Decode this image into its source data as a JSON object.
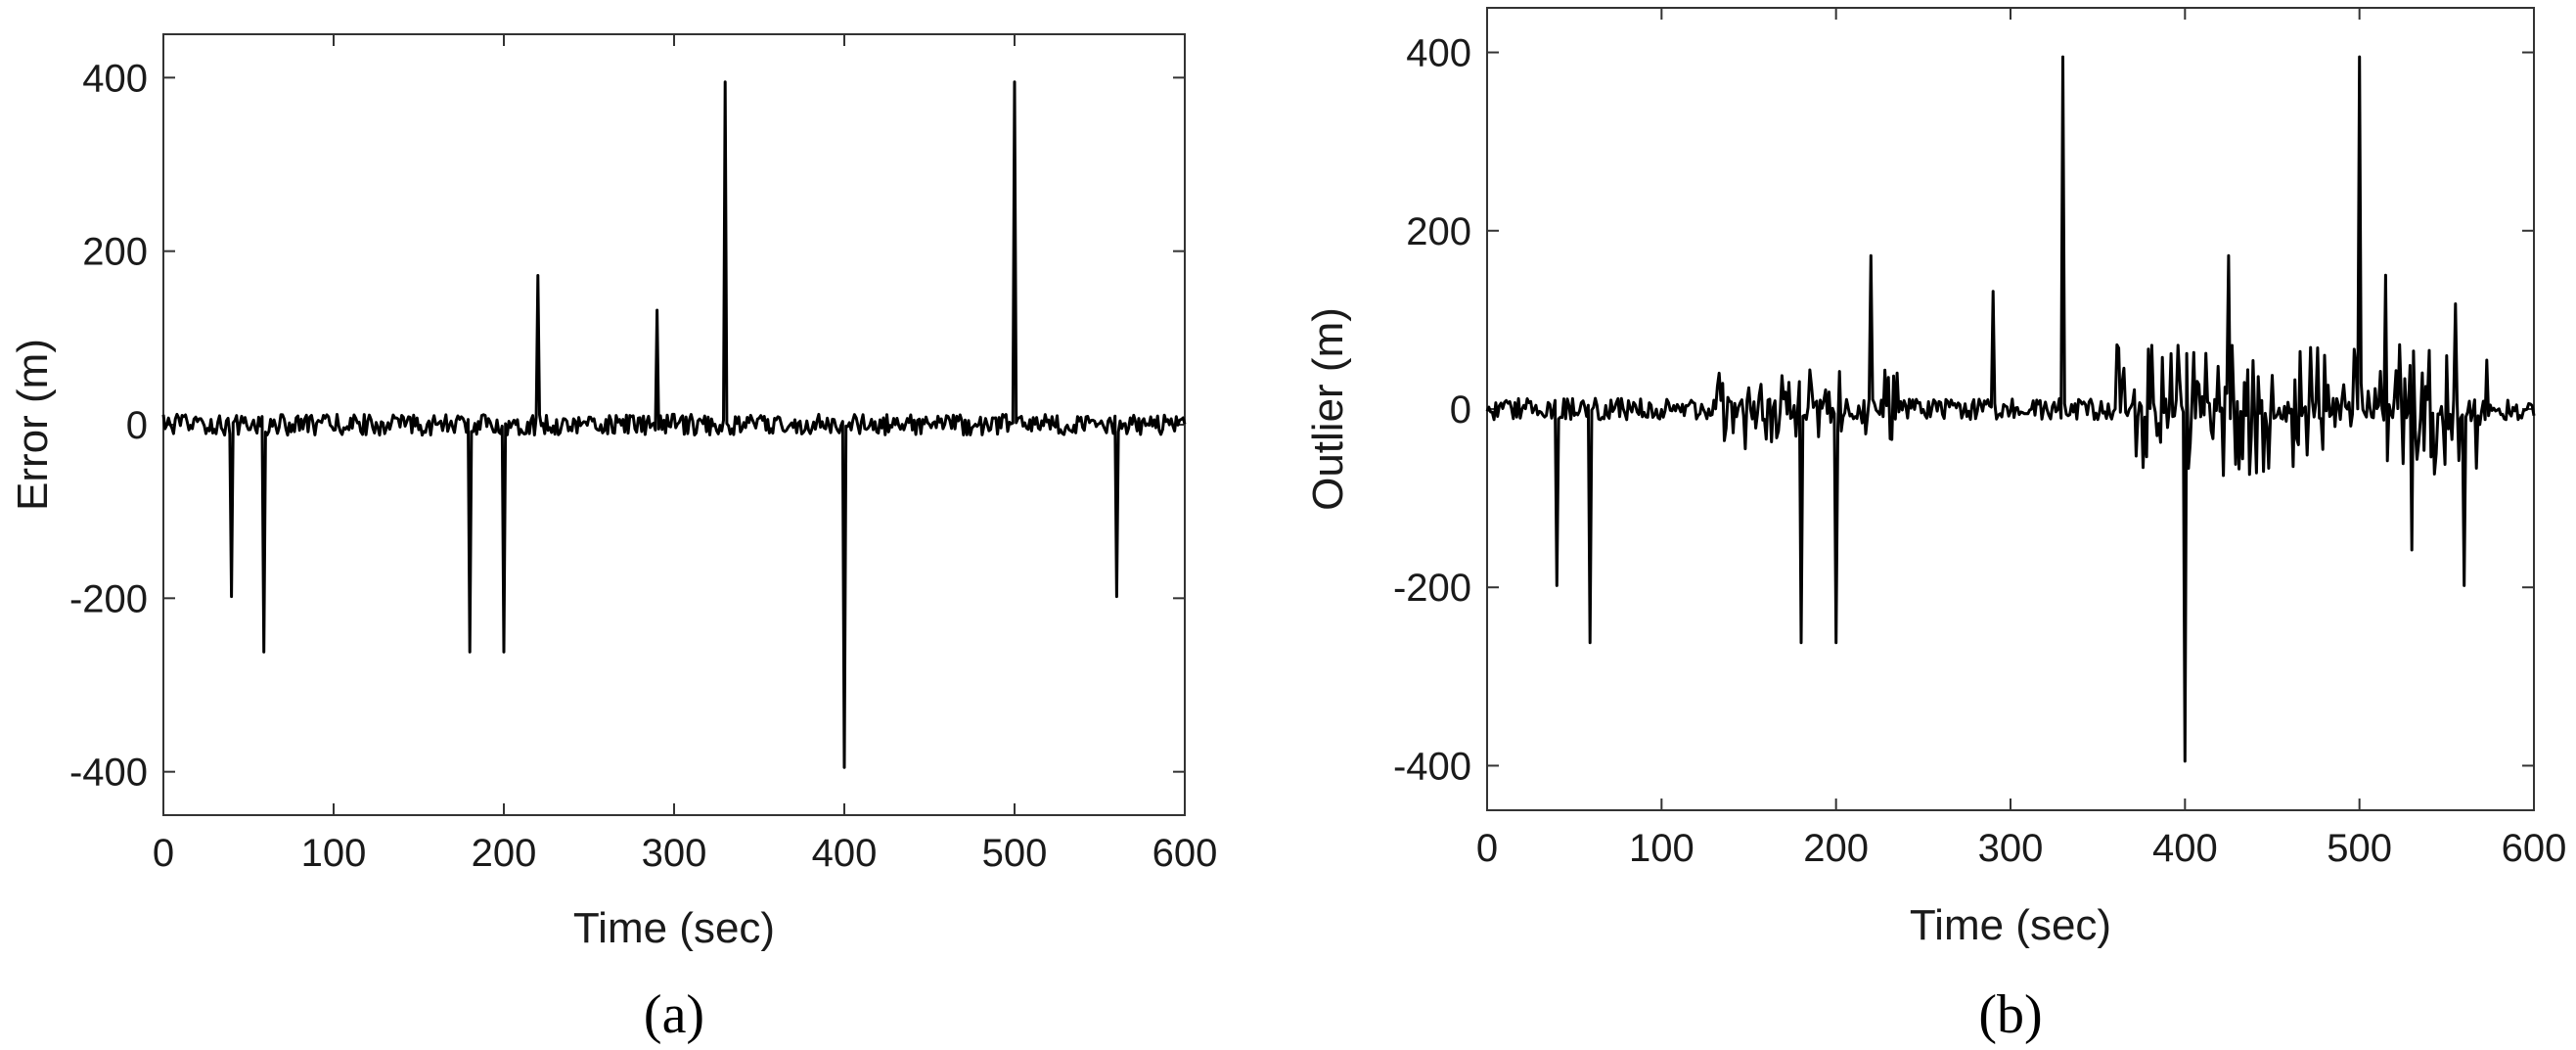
{
  "chart_data": [
    {
      "type": "line",
      "panel": "a",
      "caption": "(a)",
      "xlabel": "Time (sec)",
      "ylabel": "Error (m)",
      "xlim": [
        0,
        600
      ],
      "ylim": [
        -450,
        450
      ],
      "xticks": [
        0,
        100,
        200,
        300,
        400,
        500,
        600
      ],
      "yticks": [
        -400,
        -200,
        0,
        200,
        400
      ],
      "grid": false,
      "line_color": "#000000",
      "noise_amplitude": 12,
      "spikes": [
        {
          "x": 40,
          "y": -198
        },
        {
          "x": 59,
          "y": -262
        },
        {
          "x": 180,
          "y": -262
        },
        {
          "x": 200,
          "y": -262
        },
        {
          "x": 220,
          "y": 172
        },
        {
          "x": 290,
          "y": 132
        },
        {
          "x": 330,
          "y": 395
        },
        {
          "x": 400,
          "y": -395
        },
        {
          "x": 500,
          "y": 395
        },
        {
          "x": 560,
          "y": -198
        }
      ]
    },
    {
      "type": "line",
      "panel": "b",
      "caption": "(b)",
      "xlabel": "Time (sec)",
      "ylabel": "Outlier (m)",
      "xlim": [
        0,
        600
      ],
      "ylim": [
        -450,
        450
      ],
      "xticks": [
        0,
        100,
        200,
        300,
        400,
        500,
        600
      ],
      "yticks": [
        -400,
        -200,
        0,
        200,
        400
      ],
      "grid": false,
      "line_color": "#000000",
      "noise_amplitude": 12,
      "bursts": [
        {
          "from": 130,
          "to": 235,
          "amplitude": 45
        },
        {
          "from": 360,
          "to": 575,
          "amplitude": 75
        }
      ],
      "spikes": [
        {
          "x": 40,
          "y": -198
        },
        {
          "x": 59,
          "y": -262
        },
        {
          "x": 180,
          "y": -262
        },
        {
          "x": 200,
          "y": -262
        },
        {
          "x": 220,
          "y": 172
        },
        {
          "x": 290,
          "y": 132
        },
        {
          "x": 330,
          "y": 395
        },
        {
          "x": 400,
          "y": -395
        },
        {
          "x": 425,
          "y": 172
        },
        {
          "x": 500,
          "y": 395
        },
        {
          "x": 515,
          "y": 150
        },
        {
          "x": 530,
          "y": -158
        },
        {
          "x": 555,
          "y": 118
        },
        {
          "x": 560,
          "y": -198
        }
      ]
    }
  ]
}
